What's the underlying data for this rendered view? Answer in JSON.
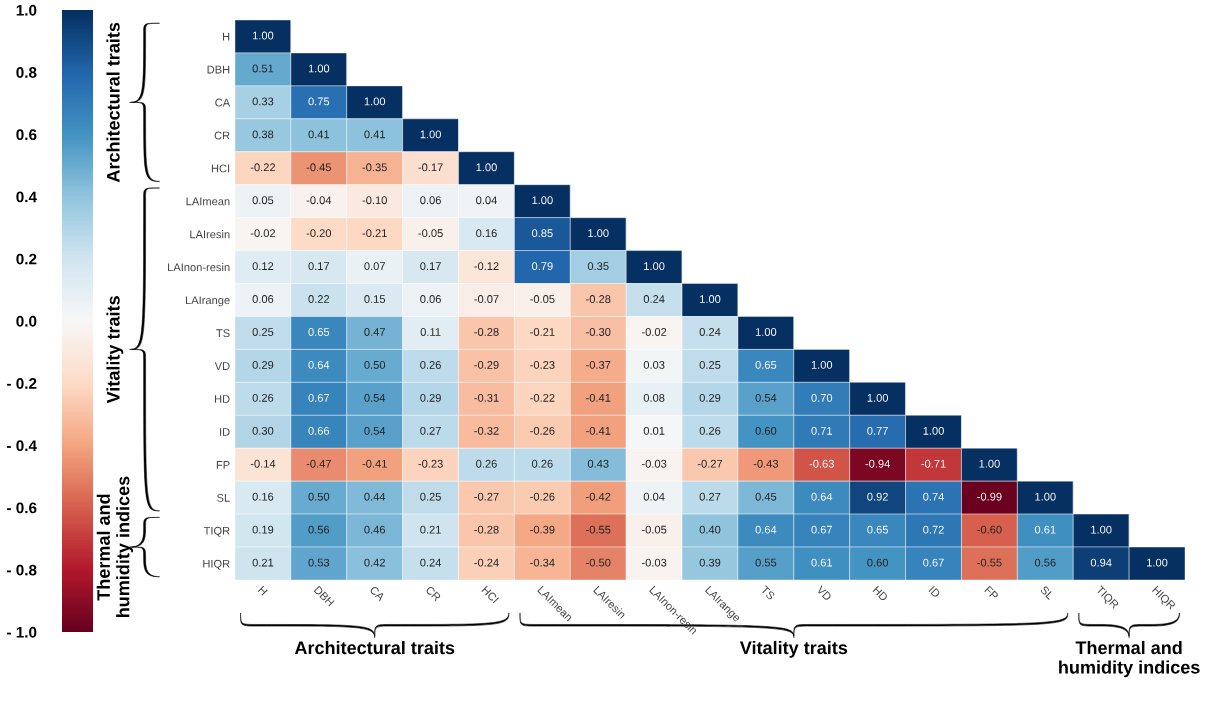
{
  "chart_data": {
    "type": "heatmap",
    "categories": [
      "H",
      "DBH",
      "CA",
      "CR",
      "HCI",
      "LAImean",
      "LAIresin",
      "LAInon-resin",
      "LAIrange",
      "TS",
      "VD",
      "HD",
      "ID",
      "FP",
      "SL",
      "TIQR",
      "HIQR"
    ],
    "y_categories": [
      "H",
      "DBH",
      "CA",
      "CR",
      "HCI",
      "LAImean",
      "LAIresin",
      "LAInon-resin",
      "LAIrange",
      "TS",
      "VD",
      "HD",
      "ID",
      "FP",
      "SL",
      "TIQR",
      "HIQR"
    ],
    "cells": [
      [
        1.0,
        null,
        null,
        null,
        null,
        null,
        null,
        null,
        null,
        null,
        null,
        null,
        null,
        null,
        null,
        null,
        null
      ],
      [
        0.51,
        1.0,
        null,
        null,
        null,
        null,
        null,
        null,
        null,
        null,
        null,
        null,
        null,
        null,
        null,
        null,
        null
      ],
      [
        0.33,
        0.75,
        1.0,
        null,
        null,
        null,
        null,
        null,
        null,
        null,
        null,
        null,
        null,
        null,
        null,
        null,
        null
      ],
      [
        0.38,
        0.41,
        0.41,
        1.0,
        null,
        null,
        null,
        null,
        null,
        null,
        null,
        null,
        null,
        null,
        null,
        null,
        null
      ],
      [
        -0.22,
        -0.45,
        -0.35,
        -0.17,
        1.0,
        null,
        null,
        null,
        null,
        null,
        null,
        null,
        null,
        null,
        null,
        null,
        null
      ],
      [
        0.05,
        -0.04,
        -0.1,
        0.06,
        0.04,
        1.0,
        null,
        null,
        null,
        null,
        null,
        null,
        null,
        null,
        null,
        null,
        null
      ],
      [
        -0.02,
        -0.2,
        -0.21,
        -0.05,
        0.16,
        0.85,
        1.0,
        null,
        null,
        null,
        null,
        null,
        null,
        null,
        null,
        null,
        null
      ],
      [
        0.12,
        0.17,
        0.07,
        0.17,
        -0.12,
        0.79,
        0.35,
        1.0,
        null,
        null,
        null,
        null,
        null,
        null,
        null,
        null,
        null
      ],
      [
        0.06,
        0.22,
        0.15,
        0.06,
        -0.07,
        -0.05,
        -0.28,
        0.24,
        1.0,
        null,
        null,
        null,
        null,
        null,
        null,
        null,
        null
      ],
      [
        0.25,
        0.65,
        0.47,
        0.11,
        -0.28,
        -0.21,
        -0.3,
        -0.02,
        0.24,
        1.0,
        null,
        null,
        null,
        null,
        null,
        null,
        null
      ],
      [
        0.29,
        0.64,
        0.5,
        0.26,
        -0.29,
        -0.23,
        -0.37,
        0.03,
        0.25,
        0.65,
        1.0,
        null,
        null,
        null,
        null,
        null,
        null
      ],
      [
        0.26,
        0.67,
        0.54,
        0.29,
        -0.31,
        -0.22,
        -0.41,
        0.08,
        0.29,
        0.54,
        0.7,
        1.0,
        null,
        null,
        null,
        null,
        null
      ],
      [
        0.3,
        0.66,
        0.54,
        0.27,
        -0.32,
        -0.26,
        -0.41,
        0.01,
        0.26,
        0.6,
        0.71,
        0.77,
        1.0,
        null,
        null,
        null,
        null
      ],
      [
        -0.14,
        -0.47,
        -0.41,
        -0.23,
        0.26,
        0.26,
        0.43,
        -0.03,
        -0.27,
        -0.43,
        -0.63,
        -0.94,
        -0.71,
        1.0,
        null,
        null,
        null
      ],
      [
        0.16,
        0.5,
        0.44,
        0.25,
        -0.27,
        -0.26,
        -0.42,
        0.04,
        0.27,
        0.45,
        0.64,
        0.92,
        0.74,
        -0.99,
        1.0,
        null,
        null
      ],
      [
        0.19,
        0.56,
        0.46,
        0.21,
        -0.28,
        -0.39,
        -0.55,
        -0.05,
        0.4,
        0.64,
        0.67,
        0.65,
        0.72,
        -0.6,
        0.61,
        1.0,
        null
      ],
      [
        0.21,
        0.53,
        0.42,
        0.24,
        -0.24,
        -0.34,
        -0.5,
        -0.03,
        0.39,
        0.55,
        0.61,
        0.6,
        0.67,
        -0.55,
        0.56,
        0.94,
        1.0
      ]
    ],
    "clim": [
      -1.0,
      1.0
    ],
    "cticks": [
      {
        "value": 1.0,
        "label": "1.0"
      },
      {
        "value": 0.8,
        "label": "0.8"
      },
      {
        "value": 0.6,
        "label": "0.6"
      },
      {
        "value": 0.4,
        "label": "0.4"
      },
      {
        "value": 0.2,
        "label": "0.2"
      },
      {
        "value": 0.0,
        "label": "0.0"
      },
      {
        "value": -0.2,
        "label": "- 0.2"
      },
      {
        "value": -0.4,
        "label": "- 0.4"
      },
      {
        "value": -0.6,
        "label": "- 0.6"
      },
      {
        "value": -0.8,
        "label": "- 0.8"
      },
      {
        "value": -1.0,
        "label": "- 1.0"
      }
    ],
    "cell_labels": [
      [
        "1.00",
        null,
        null,
        null,
        null,
        null,
        null,
        null,
        null,
        null,
        null,
        null,
        null,
        null,
        null,
        null,
        null
      ],
      [
        "0.51",
        "1.00",
        null,
        null,
        null,
        null,
        null,
        null,
        null,
        null,
        null,
        null,
        null,
        null,
        null,
        null,
        null
      ],
      [
        "0.33",
        "0.75",
        "1.00",
        null,
        null,
        null,
        null,
        null,
        null,
        null,
        null,
        null,
        null,
        null,
        null,
        null,
        null
      ],
      [
        "0.38",
        "0.41",
        "0.41",
        "1.00",
        null,
        null,
        null,
        null,
        null,
        null,
        null,
        null,
        null,
        null,
        null,
        null,
        null
      ],
      [
        "-0.22",
        "-0.45",
        "-0.35",
        "-0.17",
        "1.00",
        null,
        null,
        null,
        null,
        null,
        null,
        null,
        null,
        null,
        null,
        null,
        null
      ],
      [
        "0.05",
        "-0.04",
        "-0.10",
        "0.06",
        "0.04",
        "1.00",
        null,
        null,
        null,
        null,
        null,
        null,
        null,
        null,
        null,
        null,
        null
      ],
      [
        "-0.02",
        "-0.20",
        "-0.21",
        "-0.05",
        "0.16",
        "0.85",
        "1.00",
        null,
        null,
        null,
        null,
        null,
        null,
        null,
        null,
        null,
        null
      ],
      [
        "0.12",
        "0.17",
        "0.07",
        "0.17",
        "-0.12",
        "0.79",
        "0.35",
        "1.00",
        null,
        null,
        null,
        null,
        null,
        null,
        null,
        null,
        null
      ],
      [
        "0.06",
        "0.22",
        "0.15",
        "0.06",
        "-0.07",
        "-0.05",
        "-0.28",
        "0.24",
        "1.00",
        null,
        null,
        null,
        null,
        null,
        null,
        null,
        null
      ],
      [
        "0.25",
        "0.65",
        "0.47",
        "0.11",
        "-0.28",
        "-0.21",
        "-0.30",
        "-0.02",
        "0.24",
        "1.00",
        null,
        null,
        null,
        null,
        null,
        null,
        null
      ],
      [
        "0.29",
        "0.64",
        "0.50",
        "0.26",
        "-0.29",
        "-0.23",
        "-0.37",
        "0.03",
        "0.25",
        "0.65",
        "1.00",
        null,
        null,
        null,
        null,
        null,
        null
      ],
      [
        "0.26",
        "0.67",
        "0.54",
        "0.29",
        "-0.31",
        "-0.22",
        "-0.41",
        "0.08",
        "0.29",
        "0.54",
        "0.70",
        "1.00",
        null,
        null,
        null,
        null,
        null
      ],
      [
        "0.30",
        "0.66",
        "0.54",
        "0.27",
        "-0.32",
        "-0.26",
        "-0.41",
        "0.01",
        "0.26",
        "0.60",
        "0.71",
        "0.77",
        "1.00",
        null,
        null,
        null,
        null
      ],
      [
        "-0.14",
        "-0.47",
        "-0.41",
        "-0.23",
        "0.26",
        "0.26",
        "0.43",
        "-0.03",
        "-0.27",
        "-0.43",
        "-0.63",
        "-0.94",
        "-0.71",
        "1.00",
        null,
        null,
        null
      ],
      [
        "0.16",
        "0.50",
        "0.44",
        "0.25",
        "-0.27",
        "-0.26",
        "-0.42",
        "0.04",
        "0.27",
        "0.45",
        "0.64",
        "0.92",
        "0.74",
        "-0.99",
        "1.00",
        null,
        null
      ],
      [
        "0.19",
        "0.56",
        "0.46",
        "0.21",
        "-0.28",
        "-0.39",
        "-0.55",
        "-0.05",
        "0.40",
        "0.64",
        "0.67",
        "0.65",
        "0.72",
        "-0.60",
        "0.61",
        "1.00",
        null
      ],
      [
        "0.21",
        "0.53",
        "0.42",
        "0.24",
        "-0.24",
        "-0.34",
        "-0.50",
        "-0.03",
        "0.39",
        "0.55",
        "0.61",
        "0.60",
        "0.67",
        "-0.55",
        "0.56",
        "0.94",
        "1.00"
      ]
    ],
    "annotations": [
      "Architectural traits",
      "Vitality traits",
      "Thermal and\nhumidity indices",
      "Architectural traits",
      "Vitality traits",
      "Thermal and\nhumidity indices"
    ]
  }
}
